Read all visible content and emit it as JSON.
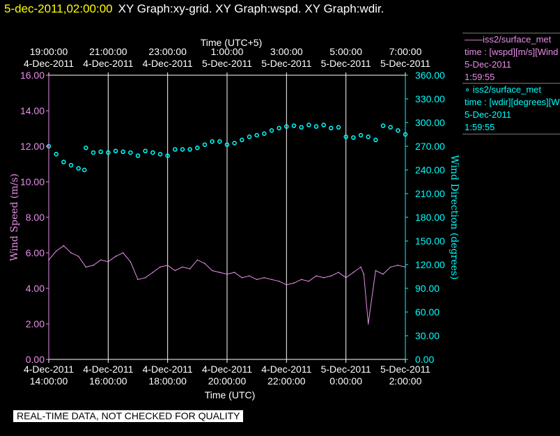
{
  "header": {
    "timestamp": "5-dec-2011,02:00:00",
    "graphs": "XY Graph:xy-grid.  XY Graph:wspd.  XY Graph:wdir."
  },
  "legend": {
    "speed": {
      "line1": "——iss2/surface_met",
      "line2": "time : [wspd][m/s][Wind Speed]",
      "line3": "5-Dec-2011",
      "line4": "1:59:55"
    },
    "direction": {
      "line1": "∘ iss2/surface_met",
      "line2": "time : [wdir][degrees][Wind Direction]",
      "line3": "5-Dec-2011",
      "line4": "1:59:55"
    }
  },
  "quality_note": "REAL-TIME DATA, NOT CHECKED FOR QUALITY",
  "colors": {
    "speed": "#e88ee8",
    "direction": "#00ffff",
    "grid": "#ffffff"
  },
  "chart_data": {
    "type": "line",
    "top_axis_label": "Time (UTC+5)",
    "top_ticks": [
      {
        "time": "19:00:00",
        "date": "4-Dec-2011"
      },
      {
        "time": "21:00:00",
        "date": "4-Dec-2011"
      },
      {
        "time": "23:00:00",
        "date": "4-Dec-2011"
      },
      {
        "time": "1:00:00",
        "date": "5-Dec-2011"
      },
      {
        "time": "3:00:00",
        "date": "5-Dec-2011"
      },
      {
        "time": "5:00:00",
        "date": "5-Dec-2011"
      },
      {
        "time": "7:00:00",
        "date": "5-Dec-2011"
      }
    ],
    "xlabel": "Time (UTC)",
    "bottom_ticks": [
      {
        "date": "4-Dec-2011",
        "time": "14:00:00"
      },
      {
        "date": "4-Dec-2011",
        "time": "16:00:00"
      },
      {
        "date": "4-Dec-2011",
        "time": "18:00:00"
      },
      {
        "date": "4-Dec-2011",
        "time": "20:00:00"
      },
      {
        "date": "4-Dec-2011",
        "time": "22:00:00"
      },
      {
        "date": "5-Dec-2011",
        "time": "0:00:00"
      },
      {
        "date": "5-Dec-2011",
        "time": "2:00:00"
      }
    ],
    "x_hours_range": [
      0,
      12
    ],
    "ylabel_left": "Wind Speed (m/s)",
    "ylim_left": [
      0,
      16
    ],
    "yticks_left": [
      "0.00",
      "2.00",
      "4.00",
      "6.00",
      "8.00",
      "10.00",
      "12.00",
      "14.00",
      "16.00"
    ],
    "ylabel_right": "Wind Direction (degrees)",
    "ylim_right": [
      0,
      360
    ],
    "yticks_right": [
      "0.00",
      "30.00",
      "60.00",
      "90.00",
      "120.00",
      "150.00",
      "180.00",
      "210.00",
      "240.00",
      "270.00",
      "300.00",
      "330.00",
      "360.00"
    ],
    "series": [
      {
        "name": "wspd",
        "axis": "left",
        "style": "line",
        "x": [
          0.0,
          0.25,
          0.5,
          0.75,
          1.0,
          1.25,
          1.5,
          1.75,
          2.0,
          2.25,
          2.5,
          2.75,
          3.0,
          3.25,
          3.5,
          3.75,
          4.0,
          4.25,
          4.5,
          4.75,
          5.0,
          5.25,
          5.5,
          5.75,
          6.0,
          6.25,
          6.5,
          6.75,
          7.0,
          7.25,
          7.5,
          7.75,
          8.0,
          8.25,
          8.5,
          8.75,
          9.0,
          9.25,
          9.5,
          9.75,
          10.0,
          10.25,
          10.5,
          10.6,
          10.75,
          11.0,
          11.25,
          11.5,
          11.75,
          12.0
        ],
        "values": [
          5.6,
          6.1,
          6.4,
          6.0,
          5.8,
          5.2,
          5.3,
          5.6,
          5.5,
          5.8,
          6.0,
          5.5,
          4.5,
          4.6,
          4.9,
          5.2,
          5.3,
          5.0,
          5.2,
          5.1,
          5.6,
          5.4,
          5.0,
          4.9,
          4.8,
          4.9,
          4.6,
          4.7,
          4.5,
          4.6,
          4.5,
          4.4,
          4.2,
          4.3,
          4.5,
          4.4,
          4.7,
          4.6,
          4.7,
          4.9,
          4.6,
          4.9,
          5.2,
          4.8,
          2.0,
          5.0,
          4.8,
          5.2,
          5.3,
          5.2
        ]
      },
      {
        "name": "wdir",
        "axis": "right",
        "style": "markers",
        "x": [
          0.0,
          0.25,
          0.5,
          0.75,
          1.0,
          1.2,
          1.25,
          1.5,
          1.75,
          2.0,
          2.25,
          2.5,
          2.75,
          3.0,
          3.25,
          3.5,
          3.75,
          4.0,
          4.25,
          4.5,
          4.75,
          5.0,
          5.25,
          5.5,
          5.75,
          6.0,
          6.25,
          6.5,
          6.75,
          7.0,
          7.25,
          7.5,
          7.75,
          8.0,
          8.25,
          8.5,
          8.75,
          9.0,
          9.25,
          9.5,
          9.75,
          10.0,
          10.25,
          10.5,
          10.75,
          11.0,
          11.25,
          11.5,
          11.75,
          12.0
        ],
        "values": [
          270,
          260,
          250,
          246,
          242,
          240,
          268,
          262,
          263,
          262,
          264,
          263,
          262,
          258,
          264,
          262,
          260,
          258,
          266,
          266,
          266,
          268,
          272,
          276,
          276,
          272,
          274,
          278,
          282,
          284,
          286,
          290,
          293,
          295,
          296,
          294,
          297,
          295,
          297,
          293,
          294,
          282,
          281,
          284,
          282,
          278,
          296,
          294,
          290,
          285
        ]
      }
    ]
  }
}
